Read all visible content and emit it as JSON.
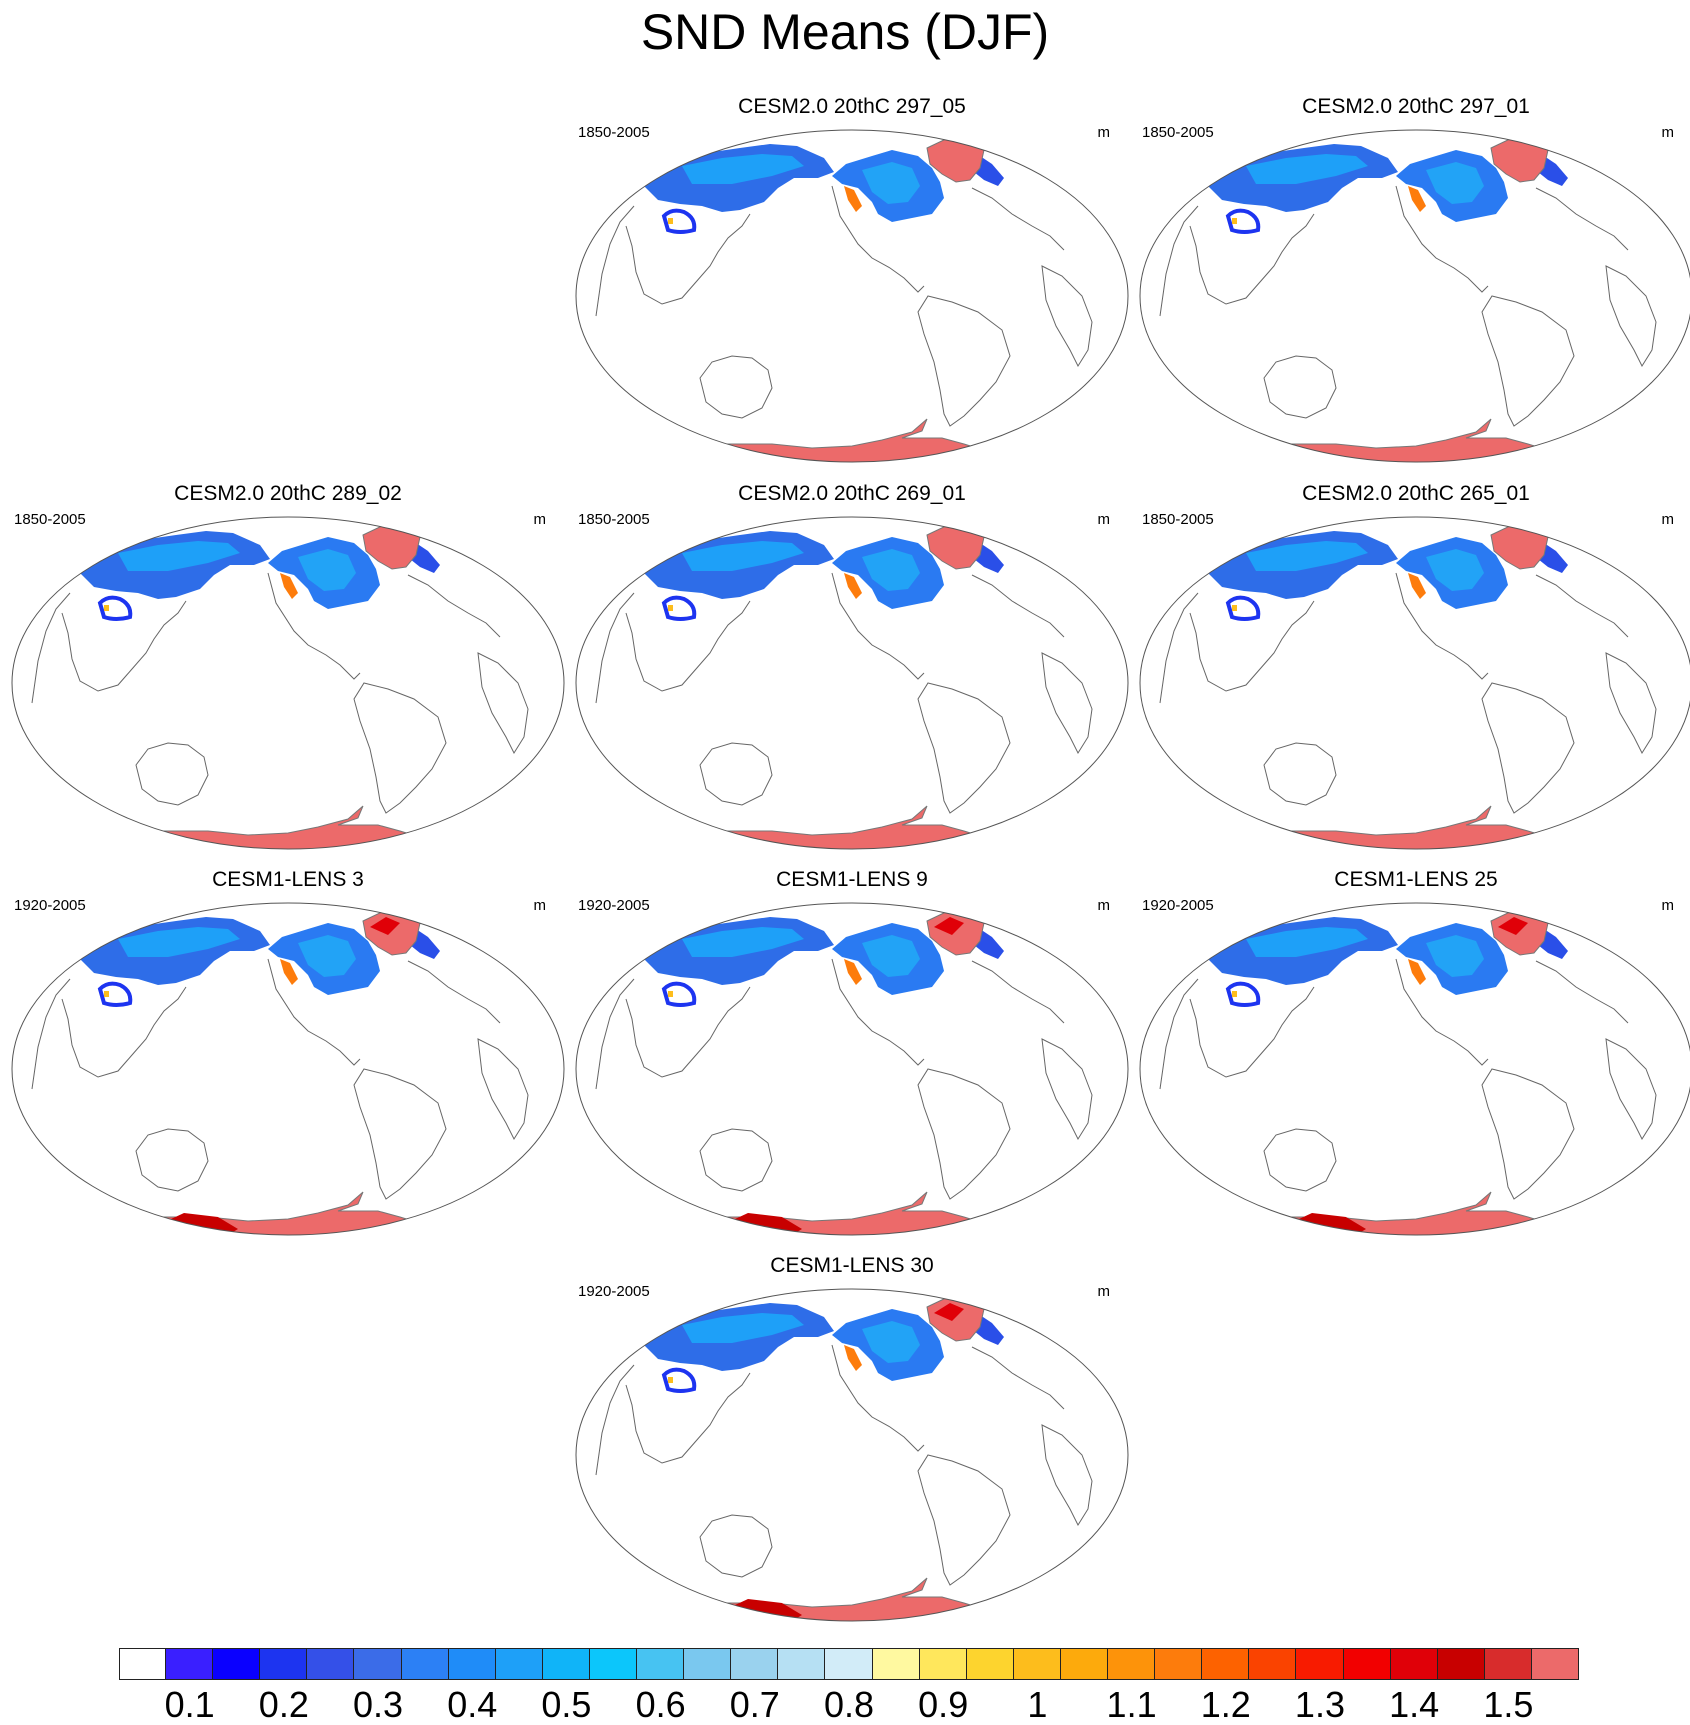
{
  "figure": {
    "title": "SND Means (DJF)"
  },
  "panels": [
    {
      "title": "CESM2.0 20thC 297_05",
      "years": "1850-2005",
      "units": "m",
      "model": "cesm2"
    },
    {
      "title": "CESM2.0 20thC 297_01",
      "years": "1850-2005",
      "units": "m",
      "model": "cesm2"
    },
    {
      "title": "CESM2.0 20thC 289_02",
      "years": "1850-2005",
      "units": "m",
      "model": "cesm2"
    },
    {
      "title": "CESM2.0 20thC 269_01",
      "years": "1850-2005",
      "units": "m",
      "model": "cesm2"
    },
    {
      "title": "CESM2.0 20thC 265_01",
      "years": "1850-2005",
      "units": "m",
      "model": "cesm2"
    },
    {
      "title": "CESM1-LENS 3",
      "years": "1920-2005",
      "units": "m",
      "model": "cesm1"
    },
    {
      "title": "CESM1-LENS 9",
      "years": "1920-2005",
      "units": "m",
      "model": "cesm1"
    },
    {
      "title": "CESM1-LENS 25",
      "years": "1920-2005",
      "units": "m",
      "model": "cesm1"
    },
    {
      "title": "CESM1-LENS 30",
      "years": "1920-2005",
      "units": "m",
      "model": "cesm1"
    }
  ],
  "colorbar": {
    "colors": [
      "#ffffff",
      "#3a1fff",
      "#0a00ff",
      "#1d34f0",
      "#3450e8",
      "#3b6ce8",
      "#2c80f5",
      "#1f8cf8",
      "#1ea0f8",
      "#10b4f8",
      "#0cc6fb",
      "#47c3f2",
      "#7ac8ef",
      "#9ad2ee",
      "#b6e0f3",
      "#d2ecf8",
      "#fff9a0",
      "#ffe75c",
      "#fdd42e",
      "#fdbd1c",
      "#fdaa0c",
      "#fd930a",
      "#fd7c0c",
      "#fd6200",
      "#fa4300",
      "#f81b00",
      "#f20000",
      "#e00008",
      "#c80000",
      "#d82c2c",
      "#ec6a6a"
    ],
    "labels": [
      "0.1",
      "0.2",
      "0.3",
      "0.4",
      "0.5",
      "0.6",
      "0.7",
      "0.8",
      "0.9",
      "1",
      "1.1",
      "1.2",
      "1.3",
      "1.4",
      "1.5"
    ]
  },
  "chart_data": {
    "type": "map",
    "variable": "SND",
    "season": "DJF",
    "units": "m",
    "levels": [
      0.05,
      0.1,
      0.15,
      0.2,
      0.25,
      0.3,
      0.35,
      0.4,
      0.45,
      0.5,
      0.55,
      0.6,
      0.65,
      0.7,
      0.75,
      0.8,
      0.85,
      0.9,
      0.95,
      1,
      1.05,
      1.1,
      1.15,
      1.2,
      1.25,
      1.3,
      1.35,
      1.4,
      1.45,
      1.5
    ],
    "panel_count": 9
  }
}
